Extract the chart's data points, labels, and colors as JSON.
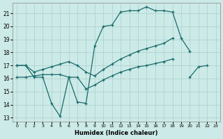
{
  "xlabel": "Humidex (Indice chaleur)",
  "xlim": [
    -0.5,
    23.5
  ],
  "ylim": [
    12.7,
    21.8
  ],
  "yticks": [
    13,
    14,
    15,
    16,
    17,
    18,
    19,
    20,
    21
  ],
  "xticks": [
    0,
    1,
    2,
    3,
    4,
    5,
    6,
    7,
    8,
    9,
    10,
    11,
    12,
    13,
    14,
    15,
    16,
    17,
    18,
    19,
    20,
    21,
    22,
    23
  ],
  "bg_color": "#cceae7",
  "grid_color": "#aacfcc",
  "line_color": "#1a6b6b",
  "line1_x": [
    0,
    1,
    2,
    3,
    4,
    5,
    6,
    7,
    8,
    9,
    10,
    11,
    12,
    13,
    14,
    15,
    16,
    17,
    18,
    19,
    20
  ],
  "line1_y": [
    17.0,
    17.0,
    16.1,
    16.1,
    14.1,
    13.1,
    16.1,
    14.2,
    14.1,
    18.5,
    20.0,
    20.1,
    21.1,
    21.2,
    21.2,
    21.5,
    21.2,
    21.2,
    21.1,
    19.1,
    18.1
  ],
  "line2_x": [
    0,
    1,
    2,
    3,
    4,
    5,
    6,
    7,
    8,
    9,
    10,
    11,
    12,
    13,
    14,
    15,
    16,
    17,
    18
  ],
  "line2_y": [
    17.0,
    17.0,
    16.5,
    16.7,
    16.9,
    17.1,
    17.3,
    17.0,
    16.5,
    16.2,
    16.7,
    17.1,
    17.5,
    17.8,
    18.1,
    18.3,
    18.5,
    18.7,
    19.1
  ],
  "line3_x": [
    0,
    1,
    2,
    3,
    4,
    5,
    6,
    7,
    8,
    9,
    10,
    11,
    12,
    13,
    14,
    15,
    16,
    17,
    18
  ],
  "line3_y": [
    16.1,
    16.1,
    16.2,
    16.3,
    16.3,
    16.3,
    16.1,
    16.1,
    15.2,
    15.5,
    15.9,
    16.2,
    16.5,
    16.7,
    16.9,
    17.0,
    17.15,
    17.3,
    17.5
  ],
  "line4_x": [
    20,
    21,
    22
  ],
  "line4_y": [
    16.1,
    16.9,
    17.0
  ]
}
